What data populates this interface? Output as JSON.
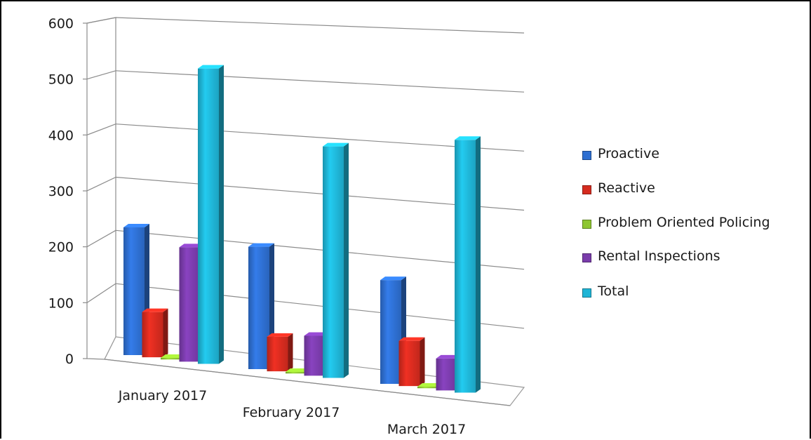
{
  "chart_data": {
    "type": "bar",
    "categories": [
      "January 2017",
      "February 2017",
      "March 2017"
    ],
    "series": [
      {
        "name": "Proactive",
        "color": "#2e6fd1",
        "values": [
          240,
          230,
          195
        ]
      },
      {
        "name": "Reactive",
        "color": "#d62b1f",
        "values": [
          85,
          65,
          85
        ]
      },
      {
        "name": "Problem Oriented Policing",
        "color": "#8ec631",
        "values": [
          3,
          3,
          3
        ]
      },
      {
        "name": "Rental Inspections",
        "color": "#7a3cab",
        "values": [
          215,
          75,
          60
        ]
      },
      {
        "name": "Total",
        "color": "#1fb5d6",
        "values": [
          555,
          435,
          475
        ]
      }
    ],
    "y_ticks": [
      "0",
      "100",
      "200",
      "300",
      "400",
      "500",
      "600"
    ],
    "ylim": [
      0,
      600
    ],
    "grid": true,
    "legend_position": "right",
    "title": "",
    "xlabel": "",
    "ylabel": ""
  }
}
